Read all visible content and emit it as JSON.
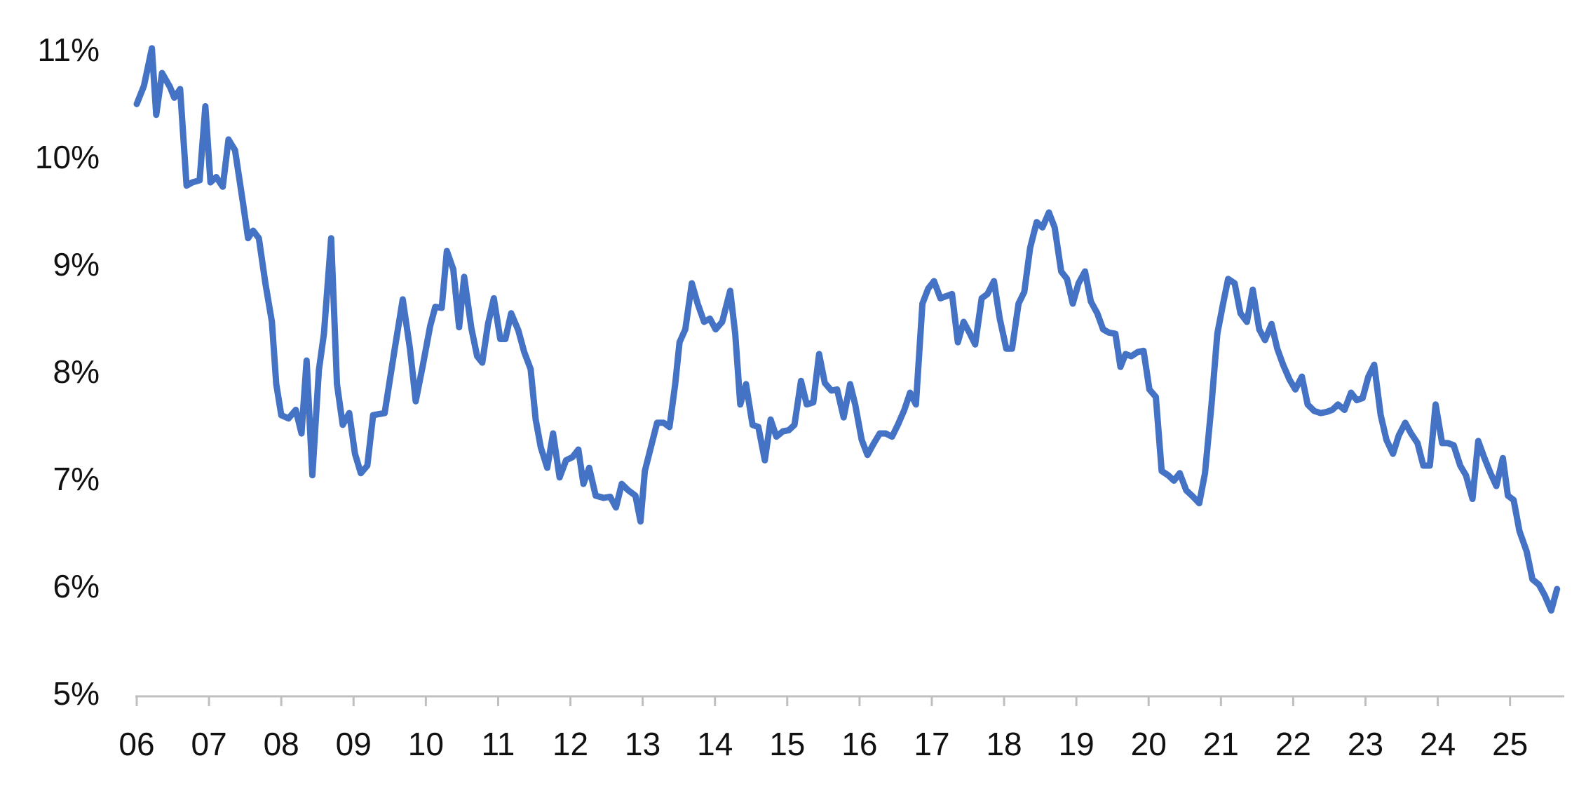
{
  "chart_data": {
    "type": "line",
    "color": "#4472c4",
    "grid": false,
    "xlim": [
      6,
      25.75
    ],
    "ylim": [
      5,
      11
    ],
    "yticks": [
      {
        "value": 5,
        "label": "5%"
      },
      {
        "value": 6,
        "label": "6%"
      },
      {
        "value": 7,
        "label": "7%"
      },
      {
        "value": 8,
        "label": "8%"
      },
      {
        "value": 9,
        "label": "9%"
      },
      {
        "value": 10,
        "label": "10%"
      },
      {
        "value": 11,
        "label": "11%"
      }
    ],
    "xticks": [
      {
        "value": 6,
        "label": "06"
      },
      {
        "value": 7,
        "label": "07"
      },
      {
        "value": 8,
        "label": "08"
      },
      {
        "value": 9,
        "label": "09"
      },
      {
        "value": 10,
        "label": "10"
      },
      {
        "value": 11,
        "label": "11"
      },
      {
        "value": 12,
        "label": "12"
      },
      {
        "value": 13,
        "label": "13"
      },
      {
        "value": 14,
        "label": "14"
      },
      {
        "value": 15,
        "label": "15"
      },
      {
        "value": 16,
        "label": "16"
      },
      {
        "value": 17,
        "label": "17"
      },
      {
        "value": 18,
        "label": "18"
      },
      {
        "value": 19,
        "label": "19"
      },
      {
        "value": 20,
        "label": "20"
      },
      {
        "value": 21,
        "label": "21"
      },
      {
        "value": 22,
        "label": "22"
      },
      {
        "value": 23,
        "label": "23"
      },
      {
        "value": 24,
        "label": "24"
      },
      {
        "value": 25,
        "label": "25"
      }
    ],
    "x": [
      6.0,
      6.1,
      6.21,
      6.27,
      6.35,
      6.46,
      6.52,
      6.6,
      6.69,
      6.77,
      6.87,
      6.95,
      7.02,
      7.1,
      7.19,
      7.27,
      7.36,
      7.47,
      7.54,
      7.61,
      7.69,
      7.78,
      7.87,
      7.93,
      8.0,
      8.1,
      8.2,
      8.28,
      8.35,
      8.43,
      8.52,
      8.59,
      8.69,
      8.77,
      8.85,
      8.94,
      9.02,
      9.1,
      9.19,
      9.27,
      9.43,
      9.57,
      9.68,
      9.78,
      9.86,
      9.96,
      10.06,
      10.13,
      10.22,
      10.29,
      10.38,
      10.46,
      10.53,
      10.63,
      10.71,
      10.78,
      10.86,
      10.94,
      11.03,
      11.1,
      11.18,
      11.28,
      11.36,
      11.45,
      11.52,
      11.59,
      11.68,
      11.76,
      11.85,
      11.94,
      12.03,
      12.11,
      12.18,
      12.26,
      12.35,
      12.46,
      12.55,
      12.63,
      12.71,
      12.8,
      12.9,
      12.97,
      13.03,
      13.12,
      13.2,
      13.29,
      13.37,
      13.45,
      13.51,
      13.59,
      13.68,
      13.76,
      13.85,
      13.93,
      14.01,
      14.1,
      14.21,
      14.28,
      14.35,
      14.43,
      14.52,
      14.6,
      14.69,
      14.77,
      14.85,
      14.94,
      15.02,
      15.1,
      15.19,
      15.27,
      15.36,
      15.44,
      15.52,
      15.61,
      15.69,
      15.78,
      15.87,
      15.94,
      16.03,
      16.11,
      16.2,
      16.28,
      16.36,
      16.45,
      16.53,
      16.62,
      16.7,
      16.78,
      16.87,
      16.95,
      17.03,
      17.12,
      17.2,
      17.28,
      17.36,
      17.44,
      17.52,
      17.6,
      17.69,
      17.77,
      17.86,
      17.94,
      18.03,
      18.11,
      18.2,
      18.28,
      18.36,
      18.45,
      18.53,
      18.62,
      18.7,
      18.79,
      18.87,
      18.95,
      19.03,
      19.12,
      19.2,
      19.29,
      19.37,
      19.45,
      19.54,
      19.61,
      19.68,
      19.76,
      19.85,
      19.93,
      20.01,
      20.1,
      20.18,
      20.27,
      20.35,
      20.43,
      20.52,
      20.6,
      20.7,
      20.78,
      20.87,
      20.95,
      21.03,
      21.1,
      21.19,
      21.27,
      21.36,
      21.44,
      21.53,
      21.61,
      21.7,
      21.78,
      21.86,
      21.95,
      22.03,
      22.12,
      22.2,
      22.29,
      22.38,
      22.46,
      22.54,
      22.62,
      22.71,
      22.8,
      22.88,
      22.96,
      23.04,
      23.12,
      23.21,
      23.29,
      23.38,
      23.46,
      23.55,
      23.63,
      23.72,
      23.8,
      23.89,
      23.97,
      24.06,
      24.14,
      24.22,
      24.31,
      24.39,
      24.48,
      24.56,
      24.64,
      24.73,
      24.81,
      24.9,
      24.97,
      25.05,
      25.13,
      25.23,
      25.31,
      25.4,
      25.48,
      25.57,
      25.65
    ],
    "values": [
      10.52,
      10.69,
      11.04,
      10.42,
      10.81,
      10.68,
      10.58,
      10.66,
      9.76,
      9.79,
      9.81,
      10.5,
      9.79,
      9.84,
      9.75,
      10.19,
      10.09,
      9.6,
      9.27,
      9.34,
      9.27,
      8.85,
      8.49,
      7.91,
      7.62,
      7.59,
      7.67,
      7.45,
      8.13,
      7.06,
      8.04,
      8.38,
      9.27,
      7.91,
      7.53,
      7.64,
      7.26,
      7.08,
      7.15,
      7.62,
      7.64,
      8.24,
      8.7,
      8.24,
      7.75,
      8.09,
      8.45,
      8.63,
      8.62,
      9.15,
      8.98,
      8.44,
      8.91,
      8.43,
      8.17,
      8.11,
      8.47,
      8.71,
      8.33,
      8.33,
      8.57,
      8.41,
      8.21,
      8.05,
      7.58,
      7.32,
      7.13,
      7.45,
      7.04,
      7.2,
      7.23,
      7.3,
      6.98,
      7.13,
      6.87,
      6.85,
      6.86,
      6.76,
      6.98,
      6.92,
      6.87,
      6.63,
      7.1,
      7.34,
      7.55,
      7.55,
      7.51,
      7.91,
      8.3,
      8.42,
      8.85,
      8.66,
      8.49,
      8.52,
      8.42,
      8.49,
      8.78,
      8.38,
      7.72,
      7.91,
      7.53,
      7.51,
      7.2,
      7.58,
      7.42,
      7.47,
      7.48,
      7.53,
      7.94,
      7.72,
      7.74,
      8.19,
      7.92,
      7.85,
      7.86,
      7.6,
      7.91,
      7.72,
      7.39,
      7.25,
      7.36,
      7.45,
      7.45,
      7.42,
      7.53,
      7.67,
      7.83,
      7.72,
      8.66,
      8.8,
      8.87,
      8.71,
      8.73,
      8.75,
      8.3,
      8.49,
      8.39,
      8.28,
      8.71,
      8.75,
      8.87,
      8.52,
      8.24,
      8.24,
      8.66,
      8.77,
      9.18,
      9.42,
      9.37,
      9.51,
      9.37,
      8.96,
      8.89,
      8.66,
      8.85,
      8.96,
      8.68,
      8.57,
      8.42,
      8.39,
      8.38,
      8.07,
      8.19,
      8.17,
      8.21,
      8.22,
      7.86,
      7.79,
      7.1,
      7.06,
      7.01,
      7.08,
      6.92,
      6.87,
      6.8,
      7.08,
      7.72,
      8.38,
      8.66,
      8.89,
      8.85,
      8.57,
      8.49,
      8.79,
      8.42,
      8.32,
      8.47,
      8.24,
      8.09,
      7.95,
      7.86,
      7.98,
      7.72,
      7.66,
      7.64,
      7.65,
      7.67,
      7.72,
      7.67,
      7.83,
      7.76,
      7.78,
      7.98,
      8.09,
      7.62,
      7.39,
      7.26,
      7.43,
      7.55,
      7.45,
      7.36,
      7.15,
      7.15,
      7.72,
      7.36,
      7.36,
      7.34,
      7.15,
      7.06,
      6.84,
      7.38,
      7.23,
      7.08,
      6.96,
      7.22,
      6.87,
      6.83,
      6.54,
      6.35,
      6.09,
      6.04,
      5.94,
      5.8,
      6.0
    ]
  }
}
